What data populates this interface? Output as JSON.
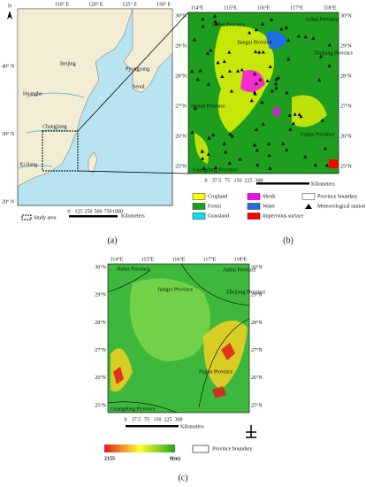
{
  "panel_a": {
    "north": "N",
    "lon_labels": [
      "110° E",
      "120° E",
      "125° E",
      "130° E"
    ],
    "lat_labels": [
      "40° N",
      "30° N",
      "20° N"
    ],
    "places": [
      "Beijing",
      "Pyongyang",
      "Seoul",
      "Huanghe",
      "Changjiang",
      "Xi Jiang"
    ],
    "scale_labels": [
      "0",
      "125",
      "250",
      "500",
      "750",
      "1000"
    ],
    "scale_unit": "Kilometers",
    "legend": "Study area",
    "label": "(a)"
  },
  "panel_b": {
    "lon_labels": [
      "114°E",
      "115°E",
      "116°E",
      "117°E",
      "118°E"
    ],
    "lat_labels": [
      "30°N",
      "29°N",
      "28°N",
      "27°N",
      "26°N",
      "25°N"
    ],
    "places": [
      "Hubei Province",
      "Jiangxi Province",
      "Anhui Province",
      "Zhejiang Province",
      "Hunan Province",
      "Fujian Province",
      "Guangdong Province"
    ],
    "scale_labels": [
      "0",
      "37.5",
      "75",
      "150",
      "225",
      "300"
    ],
    "scale_unit": "Kilometers",
    "legend": [
      {
        "label": "Cropland",
        "color": "#ffff00"
      },
      {
        "label": "Shrub",
        "color": "#ff00ff"
      },
      {
        "label": "Province boundary",
        "color": "#ffffff"
      },
      {
        "label": "Forest",
        "color": "#1e9e1e"
      },
      {
        "label": "Water",
        "color": "#1f6fe0"
      },
      {
        "label": "Meteorological station",
        "color": "#000000"
      },
      {
        "label": "Grassland",
        "color": "#00e5e5"
      },
      {
        "label": "Impervious surface",
        "color": "#ff0000"
      }
    ],
    "label": "(b)"
  },
  "panel_c": {
    "lon_labels": [
      "114°E",
      "115°E",
      "116°E",
      "117°E",
      "118°E"
    ],
    "lat_labels": [
      "30°N",
      "29°N",
      "28°N",
      "27°N",
      "26°N",
      "25°N"
    ],
    "places": [
      "Hubei Province",
      "Jiangxi Province",
      "Anhui Province",
      "Zhejiang Province",
      "Fujian Province",
      "Guangdong Province"
    ],
    "scale_labels": [
      "0",
      "37.5",
      "75",
      "150",
      "225",
      "300"
    ],
    "scale_unit": "Kilometers",
    "elevation_max": "2155",
    "elevation_min": "0(m)",
    "legend": "Province boundary",
    "label": "(c)"
  }
}
